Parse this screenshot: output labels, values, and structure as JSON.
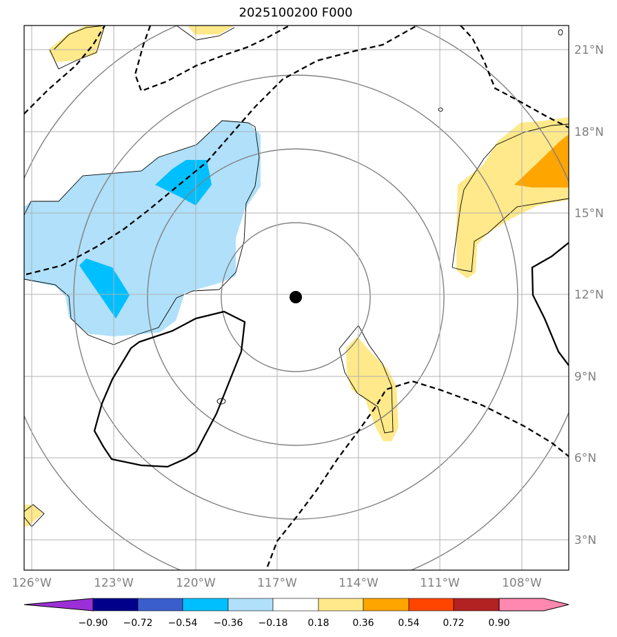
{
  "title": "2025100200 F000",
  "longitude_labels": [
    "126°W",
    "123°W",
    "120°W",
    "117°W",
    "114°W",
    "111°W",
    "108°W"
  ],
  "latitude_labels": [
    "21°N",
    "18°N",
    "15°N",
    "12°N",
    "9°N",
    "6°N",
    "3°N"
  ],
  "storm_center": {
    "lon": "116.2°W",
    "lat": "11.9°N"
  },
  "colorbar": {
    "tick_labels": [
      "−0.90",
      "−0.72",
      "−0.54",
      "−0.36",
      "−0.18",
      "0.18",
      "0.36",
      "0.54",
      "0.72",
      "0.90"
    ],
    "colors": [
      "#9b30d6",
      "#00008b",
      "#3a5fcd",
      "#00bfff",
      "#b0e0fa",
      "#ffffff",
      "#ffe98a",
      "#ffa500",
      "#ff4500",
      "#b22222",
      "#ff88b0"
    ]
  },
  "fill_colors": {
    "light_blue": "#b0e0fa",
    "deep_sky_blue": "#00bfff",
    "light_yellow": "#ffe98a",
    "orange": "#ffa500"
  }
}
